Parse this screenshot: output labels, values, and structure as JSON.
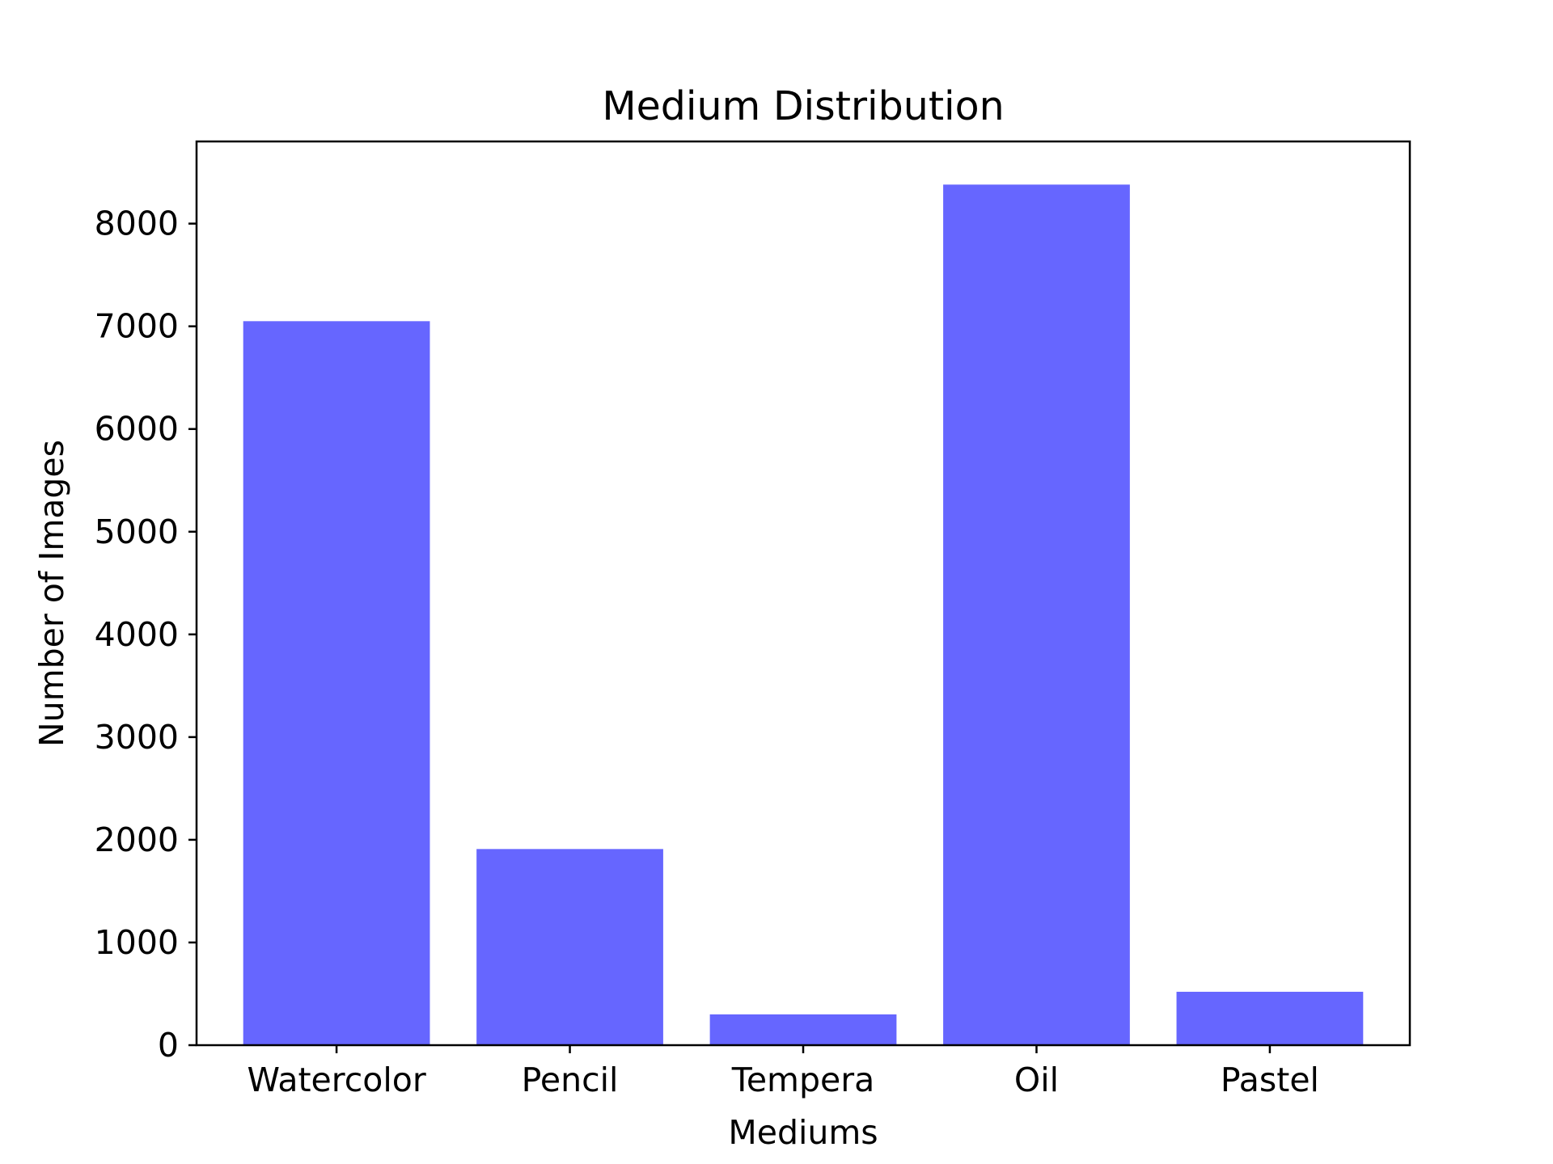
{
  "chart_data": {
    "type": "bar",
    "title": "Medium Distribution",
    "xlabel": "Mediums",
    "ylabel": "Number of Images",
    "categories": [
      "Watercolor",
      "Pencil",
      "Tempera",
      "Oil",
      "Pastel"
    ],
    "values": [
      7050,
      1910,
      300,
      8380,
      520
    ],
    "ylim": [
      0,
      8800
    ],
    "yticks": [
      0,
      1000,
      2000,
      3000,
      4000,
      5000,
      6000,
      7000,
      8000
    ],
    "bar_color": "#6666ff",
    "grid": false,
    "legend": "none"
  }
}
